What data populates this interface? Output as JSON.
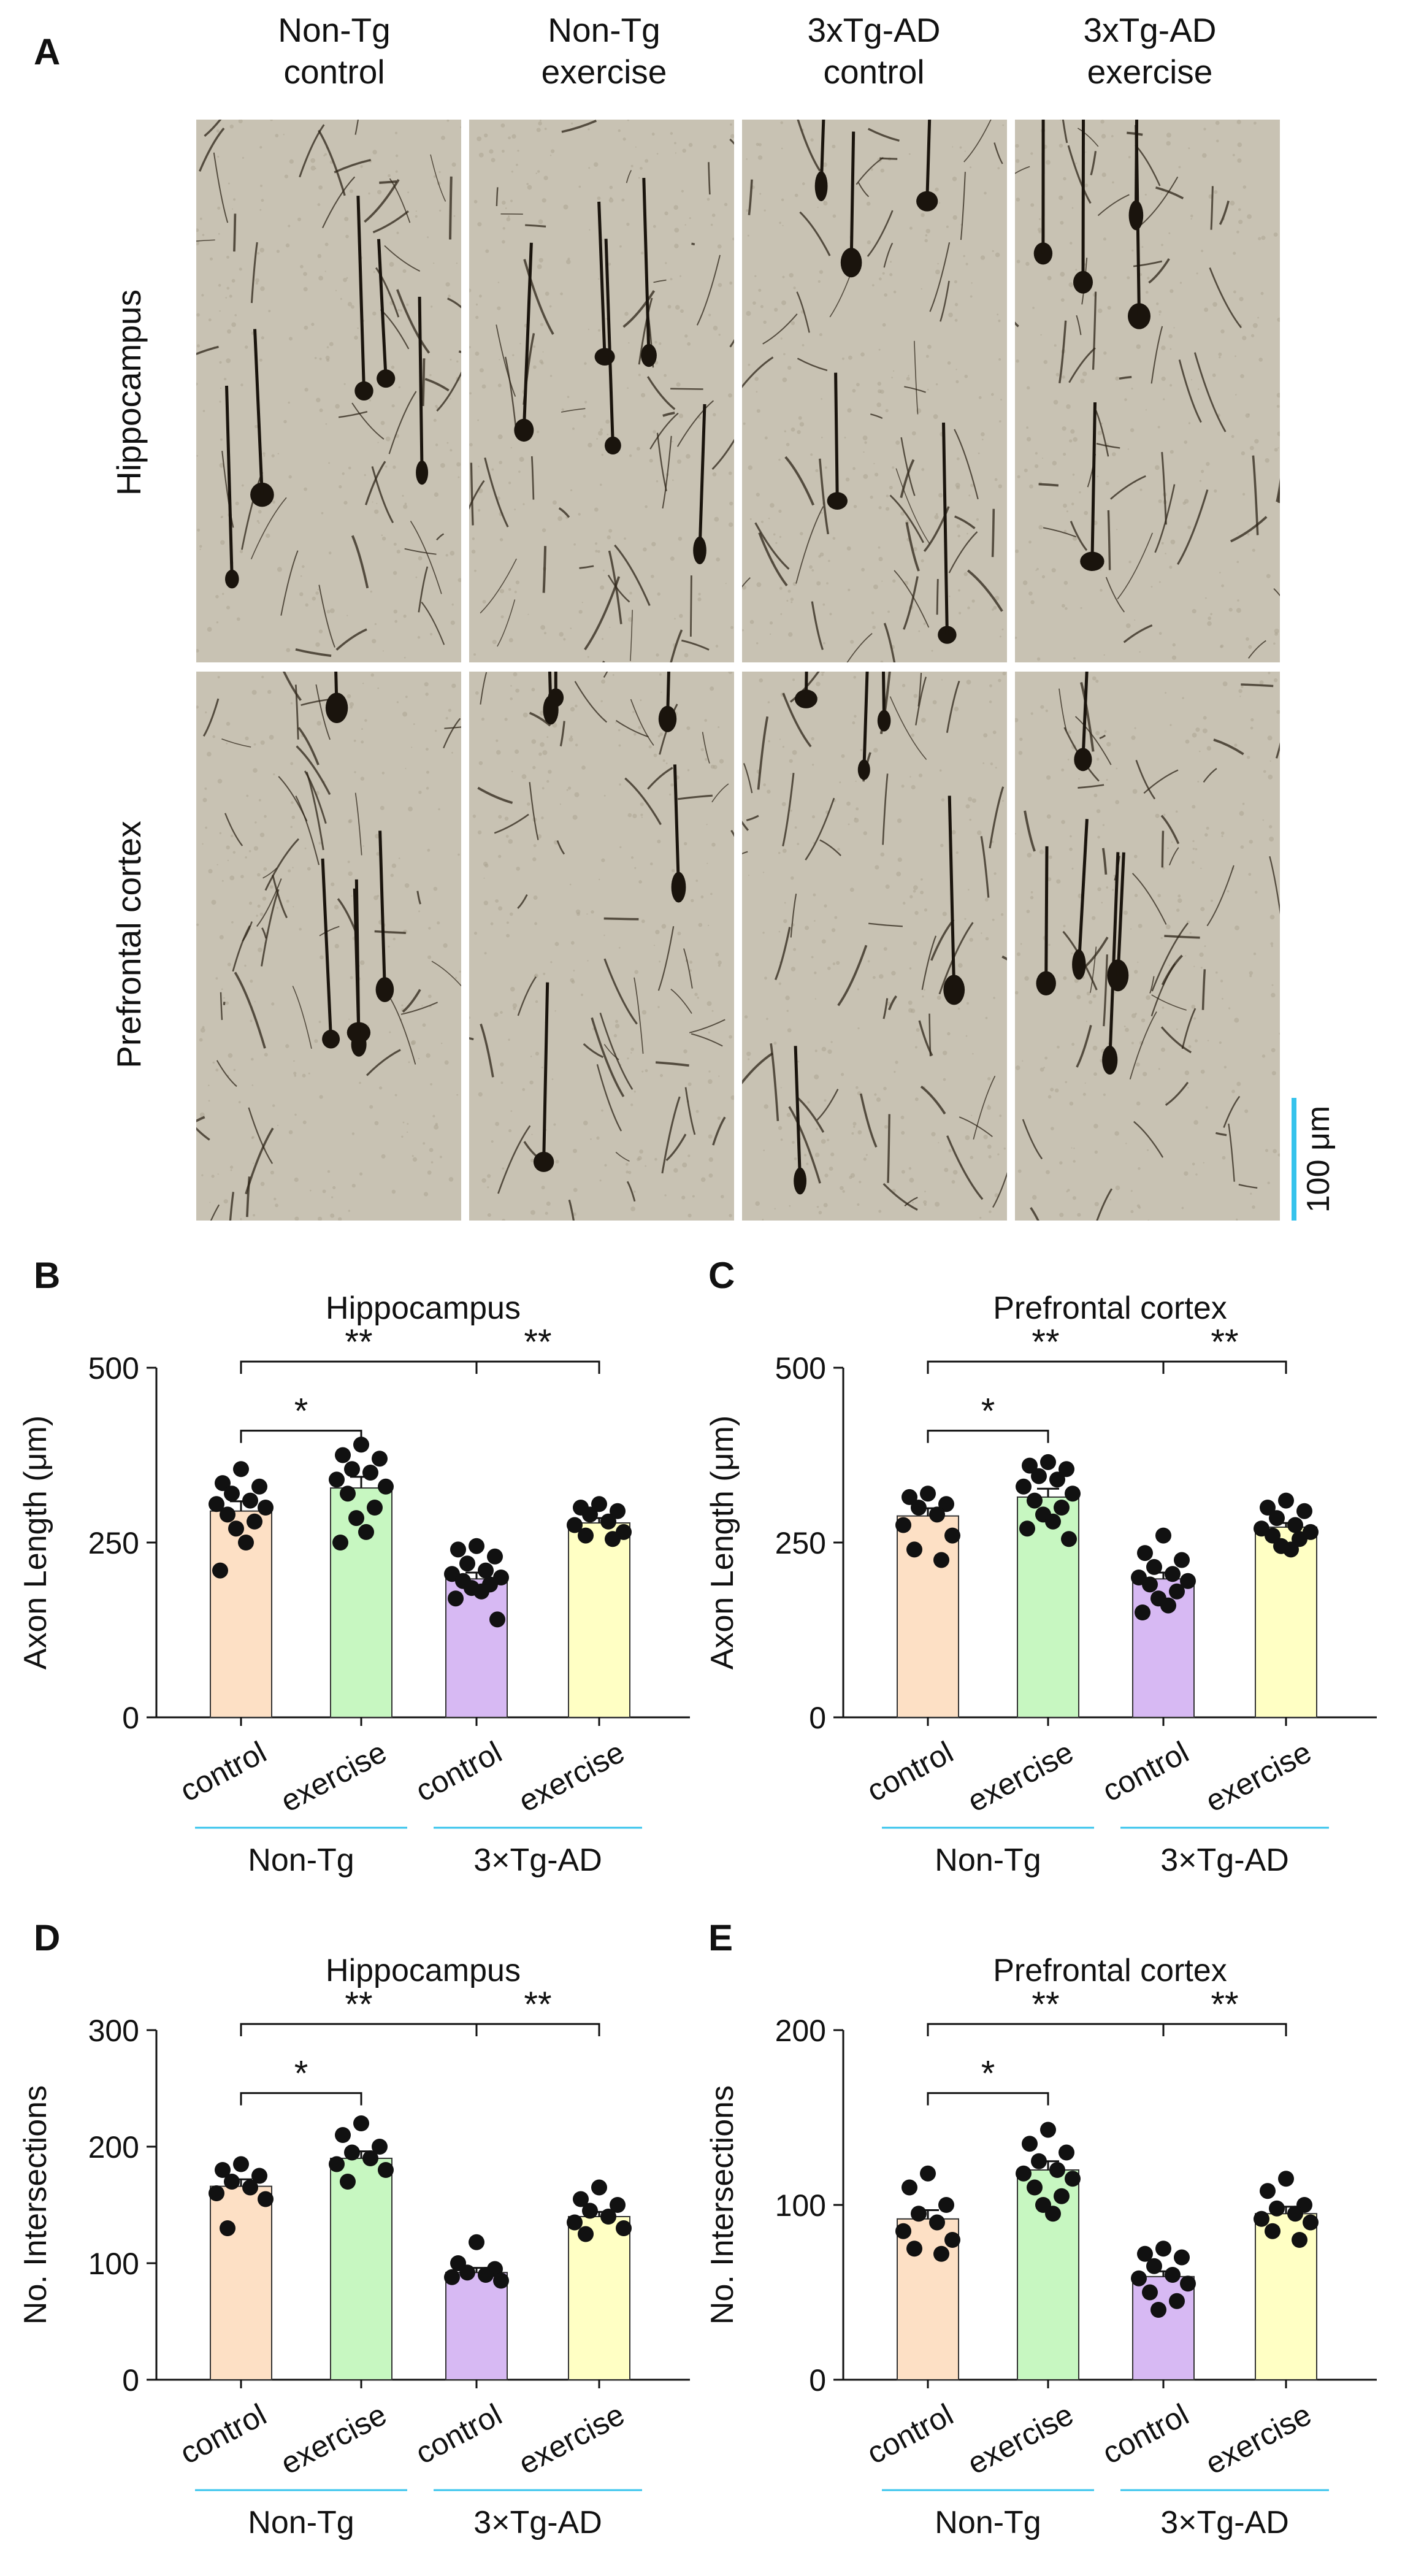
{
  "panelA": {
    "letter": "A",
    "columns": [
      {
        "line1": "Non-Tg",
        "line2": "control"
      },
      {
        "line1": "Non-Tg",
        "line2": "exercise"
      },
      {
        "line1": "3xTg-AD",
        "line2": "control"
      },
      {
        "line1": "3xTg-AD",
        "line2": "exercise"
      }
    ],
    "rows": [
      "Hippocampus",
      "Prefrontal cortex"
    ],
    "scale_bar_label": "100 μm",
    "colors": {
      "scale_bar": "#36c3ec",
      "tissue": "#c8c2b3"
    }
  },
  "chart_data": [
    {
      "panel": "B",
      "type": "bar",
      "title": "Hippocampus",
      "ylabel": "Axon Length (μm)",
      "ylim": [
        0,
        500
      ],
      "yticks": [
        0,
        250,
        500
      ],
      "categories": [
        "control",
        "exercise",
        "control",
        "exercise"
      ],
      "groups": [
        "Non-Tg",
        "3×Tg-AD"
      ],
      "values": [
        295,
        328,
        198,
        278
      ],
      "sem": [
        14,
        16,
        9,
        7
      ],
      "points": [
        [
          355,
          335,
          330,
          320,
          310,
          305,
          300,
          290,
          280,
          270,
          250,
          210
        ],
        [
          390,
          375,
          370,
          355,
          350,
          340,
          330,
          320,
          300,
          285,
          265,
          250
        ],
        [
          245,
          240,
          230,
          220,
          210,
          205,
          200,
          195,
          190,
          185,
          180,
          170,
          140
        ],
        [
          305,
          300,
          295,
          290,
          280,
          275,
          265,
          260,
          255
        ]
      ],
      "significance": [
        {
          "from": 0,
          "to": 1,
          "label": "*"
        },
        {
          "from": 0,
          "to": 2,
          "label": "**"
        },
        {
          "from": 2,
          "to": 3,
          "label": "**"
        }
      ],
      "colors": [
        "#fde0c5",
        "#c7f7c1",
        "#d7b9f3",
        "#ffffc4"
      ]
    },
    {
      "panel": "C",
      "type": "bar",
      "title": "Prefrontal cortex",
      "ylabel": "Axon Length (μm)",
      "ylim": [
        0,
        500
      ],
      "yticks": [
        0,
        250,
        500
      ],
      "categories": [
        "control",
        "exercise",
        "control",
        "exercise"
      ],
      "groups": [
        "Non-Tg",
        "3×Tg-AD"
      ],
      "values": [
        288,
        315,
        198,
        272
      ],
      "sem": [
        11,
        12,
        9,
        6
      ],
      "points": [
        [
          320,
          315,
          305,
          300,
          290,
          275,
          260,
          240,
          225
        ],
        [
          365,
          360,
          355,
          345,
          340,
          330,
          320,
          310,
          300,
          290,
          280,
          270,
          255
        ],
        [
          260,
          235,
          225,
          215,
          205,
          200,
          195,
          190,
          180,
          170,
          160,
          150
        ],
        [
          310,
          300,
          295,
          285,
          275,
          270,
          265,
          260,
          255,
          245,
          240
        ]
      ],
      "significance": [
        {
          "from": 0,
          "to": 1,
          "label": "*"
        },
        {
          "from": 0,
          "to": 2,
          "label": "**"
        },
        {
          "from": 2,
          "to": 3,
          "label": "**"
        }
      ],
      "colors": [
        "#fde0c5",
        "#c7f7c1",
        "#d7b9f3",
        "#ffffc4"
      ]
    },
    {
      "panel": "D",
      "type": "bar",
      "title": "Hippocampus",
      "ylabel": "No. Intersections",
      "ylim": [
        0,
        300
      ],
      "yticks": [
        0,
        100,
        200,
        300
      ],
      "categories": [
        "control",
        "exercise",
        "control",
        "exercise"
      ],
      "groups": [
        "Non-Tg",
        "3×Tg-AD"
      ],
      "values": [
        166,
        190,
        92,
        140
      ],
      "sem": [
        6,
        6,
        4,
        4
      ],
      "points": [
        [
          185,
          180,
          175,
          170,
          165,
          160,
          155,
          130
        ],
        [
          220,
          210,
          200,
          195,
          190,
          185,
          180,
          170
        ],
        [
          118,
          100,
          95,
          92,
          90,
          88,
          85
        ],
        [
          165,
          155,
          150,
          145,
          140,
          135,
          130,
          125
        ]
      ],
      "significance": [
        {
          "from": 0,
          "to": 1,
          "label": "*"
        },
        {
          "from": 0,
          "to": 2,
          "label": "**"
        },
        {
          "from": 2,
          "to": 3,
          "label": "**"
        }
      ],
      "colors": [
        "#fde0c5",
        "#c7f7c1",
        "#d7b9f3",
        "#ffffc4"
      ]
    },
    {
      "panel": "E",
      "type": "bar",
      "title": "Prefrontal cortex",
      "ylabel": "No. Intersections",
      "ylim": [
        0,
        200
      ],
      "yticks": [
        0,
        100,
        200
      ],
      "categories": [
        "control",
        "exercise",
        "control",
        "exercise"
      ],
      "groups": [
        "Non-Tg",
        "3×Tg-AD"
      ],
      "values": [
        92,
        120,
        59,
        95
      ],
      "sem": [
        5,
        5,
        3,
        4
      ],
      "points": [
        [
          118,
          110,
          100,
          95,
          90,
          85,
          80,
          75,
          72
        ],
        [
          143,
          135,
          130,
          125,
          120,
          118,
          115,
          110,
          105,
          100,
          95
        ],
        [
          75,
          72,
          70,
          65,
          60,
          58,
          55,
          50,
          45,
          40
        ],
        [
          115,
          108,
          100,
          98,
          95,
          92,
          90,
          85,
          80
        ]
      ],
      "significance": [
        {
          "from": 0,
          "to": 1,
          "label": "*"
        },
        {
          "from": 0,
          "to": 2,
          "label": "**"
        },
        {
          "from": 2,
          "to": 3,
          "label": "**"
        }
      ],
      "colors": [
        "#fde0c5",
        "#c7f7c1",
        "#d7b9f3",
        "#ffffc4"
      ]
    }
  ]
}
